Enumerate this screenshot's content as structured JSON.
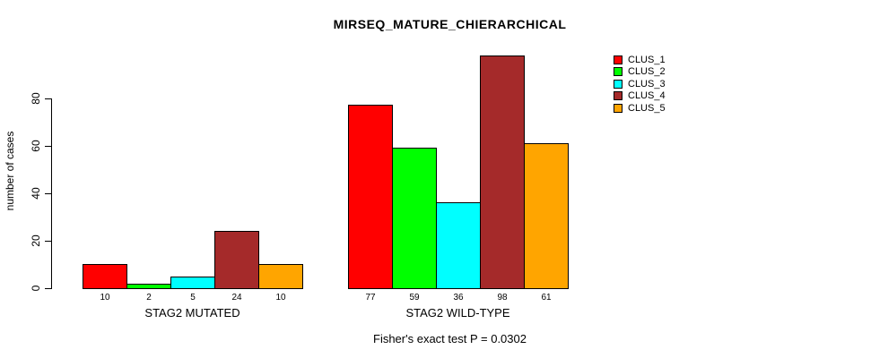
{
  "figure": {
    "title": "MIRSEQ_MATURE_CHIERARCHICAL",
    "ylabel": "number of cases",
    "caption": "Fisher's exact test P = 0.0302"
  },
  "chart_data": {
    "type": "bar",
    "title": "MIRSEQ_MATURE_CHIERARCHICAL",
    "xlabel": "",
    "ylabel": "number of cases",
    "ylim": [
      0,
      99
    ],
    "yticks": [
      0,
      20,
      40,
      60,
      80
    ],
    "grid": false,
    "legend_position": "top-right",
    "categories": [
      "STAG2 MUTATED",
      "STAG2 WILD-TYPE"
    ],
    "series": [
      {
        "name": "CLUS_1",
        "color": "#FF0000",
        "values": [
          10,
          77
        ]
      },
      {
        "name": "CLUS_2",
        "color": "#00FF00",
        "values": [
          2,
          59
        ]
      },
      {
        "name": "CLUS_3",
        "color": "#00FFFF",
        "values": [
          5,
          36
        ]
      },
      {
        "name": "CLUS_4",
        "color": "#A52A2A",
        "values": [
          24,
          98
        ]
      },
      {
        "name": "CLUS_5",
        "color": "#FFA500",
        "values": [
          10,
          61
        ]
      }
    ],
    "bar_value_labels": {
      "STAG2 MUTATED": [
        10,
        2,
        5,
        24,
        10
      ],
      "STAG2 WILD-TYPE": [
        77,
        59,
        36,
        98,
        61
      ]
    },
    "annotation": "Fisher's exact test P = 0.0302"
  }
}
